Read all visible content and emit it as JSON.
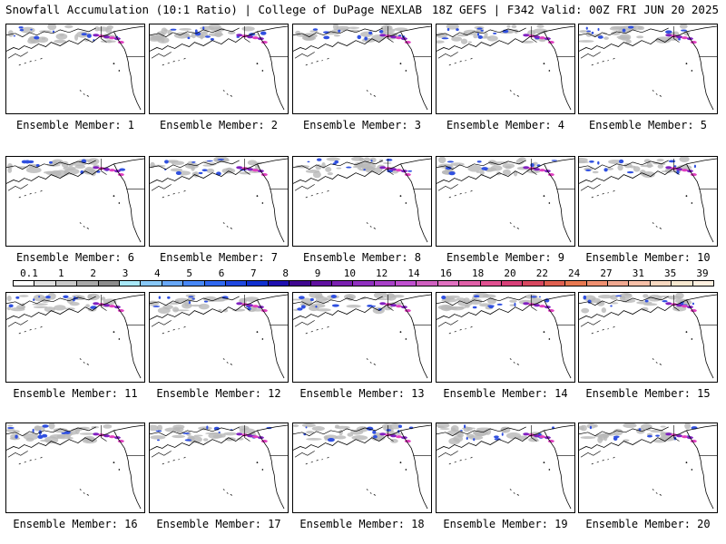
{
  "header": {
    "left_title": "Snowfall Accumulation (10:1 Ratio) | College of DuPage NEXLAB",
    "right_title": "18Z GEFS | F342 Valid: 00Z FRI JUN 20 2025"
  },
  "panels": [
    {
      "label": "Ensemble Member: 1"
    },
    {
      "label": "Ensemble Member: 2"
    },
    {
      "label": "Ensemble Member: 3"
    },
    {
      "label": "Ensemble Member: 4"
    },
    {
      "label": "Ensemble Member: 5"
    },
    {
      "label": "Ensemble Member: 6"
    },
    {
      "label": "Ensemble Member: 7"
    },
    {
      "label": "Ensemble Member: 8"
    },
    {
      "label": "Ensemble Member: 9"
    },
    {
      "label": "Ensemble Member: 10"
    },
    {
      "label": "Ensemble Member: 11"
    },
    {
      "label": "Ensemble Member: 12"
    },
    {
      "label": "Ensemble Member: 13"
    },
    {
      "label": "Ensemble Member: 14"
    },
    {
      "label": "Ensemble Member: 15"
    },
    {
      "label": "Ensemble Member: 16"
    },
    {
      "label": "Ensemble Member: 17"
    },
    {
      "label": "Ensemble Member: 18"
    },
    {
      "label": "Ensemble Member: 19"
    },
    {
      "label": "Ensemble Member: 20"
    }
  ],
  "colorbar": {
    "ticks": [
      "0.1",
      "1",
      "2",
      "3",
      "4",
      "5",
      "6",
      "7",
      "8",
      "9",
      "10",
      "12",
      "14",
      "16",
      "18",
      "20",
      "22",
      "24",
      "27",
      "31",
      "35",
      "39"
    ],
    "colors": [
      "#ffffff",
      "#e0e0e0",
      "#c8c8c8",
      "#a8a8a8",
      "#8c8c8c",
      "#a8e8f8",
      "#88c8f8",
      "#68a8f8",
      "#4888f8",
      "#3068f0",
      "#2048e0",
      "#1030d0",
      "#2010b0",
      "#400890",
      "#6010a0",
      "#7a20b0",
      "#9030c0",
      "#a840c8",
      "#c050d0",
      "#d060c0",
      "#e070c0",
      "#e060a8",
      "#e05090",
      "#d84078",
      "#d84860",
      "#e06050",
      "#e87850",
      "#f09070",
      "#f0a890",
      "#f8c0a8",
      "#f8d8c0",
      "#f8e8d0",
      "#fff0e0"
    ]
  },
  "colors": {
    "coast": "#000000",
    "snow_light": "#b8b8b8",
    "snow_blue": "#3050e0",
    "snow_purple": "#8020c0",
    "snow_pink": "#e040c0"
  }
}
